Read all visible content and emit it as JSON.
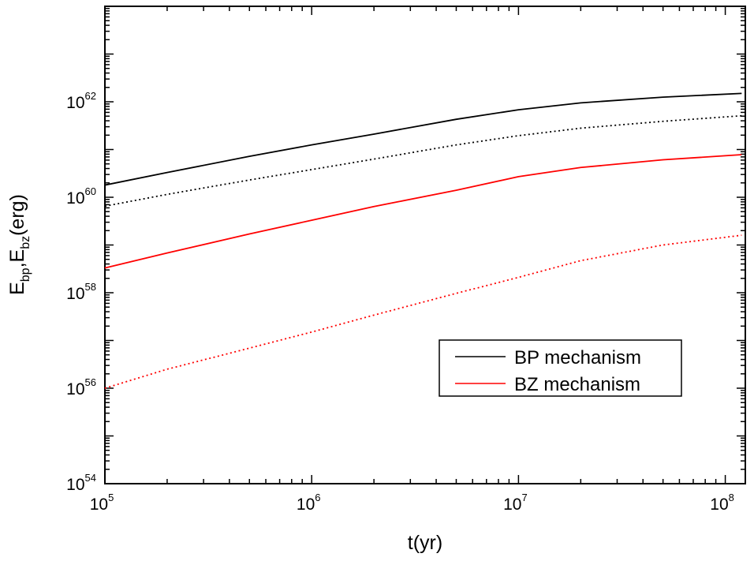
{
  "chart_data": {
    "type": "line",
    "xlabel": "t(yr)",
    "ylabel": {
      "base": "E",
      "sub1": "bp",
      "sep": ",",
      "base2": "E",
      "sub2": "bz",
      "unit": "(erg)"
    },
    "x_scale": "log",
    "y_scale": "log",
    "xlim": [
      100000,
      125000000
    ],
    "ylim": [
      1e+54,
      1e+64
    ],
    "x_ticks": [
      {
        "value": 100000,
        "base": "10",
        "exp": "5"
      },
      {
        "value": 1000000,
        "base": "10",
        "exp": "6"
      },
      {
        "value": 10000000,
        "base": "10",
        "exp": "7"
      },
      {
        "value": 100000000,
        "base": "10",
        "exp": "8"
      }
    ],
    "y_ticks": [
      {
        "value": 1e+54,
        "base": "10",
        "exp": "54"
      },
      {
        "value": 1e+56,
        "base": "10",
        "exp": "56"
      },
      {
        "value": 1e+58,
        "base": "10",
        "exp": "58"
      },
      {
        "value": 1e+60,
        "base": "10",
        "exp": "60"
      },
      {
        "value": 1e+62,
        "base": "10",
        "exp": "62"
      }
    ],
    "grid": false,
    "legend_position": "lower-right",
    "legend": [
      {
        "label": "BP mechanism",
        "color": "#000000"
      },
      {
        "label": "BZ mechanism",
        "color": "#ff0000"
      }
    ],
    "series": [
      {
        "color": "#000000",
        "style": "solid",
        "points": [
          [
            100000.0,
            1.8e+60
          ],
          [
            200000.0,
            3.3e+60
          ],
          [
            500000.0,
            7.2e+60
          ],
          [
            1000000.0,
            1.25e+61
          ],
          [
            2000000.0,
            2.1e+61
          ],
          [
            5000000.0,
            4.3e+61
          ],
          [
            10000000.0,
            6.8e+61
          ],
          [
            20000000.0,
            9.5e+61
          ],
          [
            50000000.0,
            1.25e+62
          ],
          [
            120000000.0,
            1.5e+62
          ]
        ]
      },
      {
        "color": "#000000",
        "style": "dotted",
        "points": [
          [
            100000.0,
            6.5e+59
          ],
          [
            200000.0,
            1.15e+60
          ],
          [
            500000.0,
            2.3e+60
          ],
          [
            1000000.0,
            3.8e+60
          ],
          [
            2000000.0,
            6.3e+60
          ],
          [
            5000000.0,
            1.25e+61
          ],
          [
            10000000.0,
            1.95e+61
          ],
          [
            20000000.0,
            2.8e+61
          ],
          [
            50000000.0,
            3.9e+61
          ],
          [
            120000000.0,
            5.1e+61
          ]
        ]
      },
      {
        "color": "#ff0000",
        "style": "solid",
        "points": [
          [
            100000.0,
            3.3e+58
          ],
          [
            200000.0,
            6.8e+58
          ],
          [
            500000.0,
            1.7e+59
          ],
          [
            1000000.0,
            3.3e+59
          ],
          [
            2000000.0,
            6.4e+59
          ],
          [
            5000000.0,
            1.4e+60
          ],
          [
            10000000.0,
            2.7e+60
          ],
          [
            20000000.0,
            4.2e+60
          ],
          [
            50000000.0,
            6.1e+60
          ],
          [
            120000000.0,
            7.8e+60
          ]
        ]
      },
      {
        "color": "#ff0000",
        "style": "dotted",
        "points": [
          [
            100000.0,
            1e+56
          ],
          [
            200000.0,
            2.5e+56
          ],
          [
            500000.0,
            6.9e+56
          ],
          [
            1000000.0,
            1.5e+57
          ],
          [
            2000000.0,
            3.4e+57
          ],
          [
            5000000.0,
            9.7e+57
          ],
          [
            10000000.0,
            2.1e+58
          ],
          [
            20000000.0,
            4.7e+58
          ],
          [
            50000000.0,
            1e+59
          ],
          [
            120000000.0,
            1.6e+59
          ]
        ]
      }
    ]
  }
}
